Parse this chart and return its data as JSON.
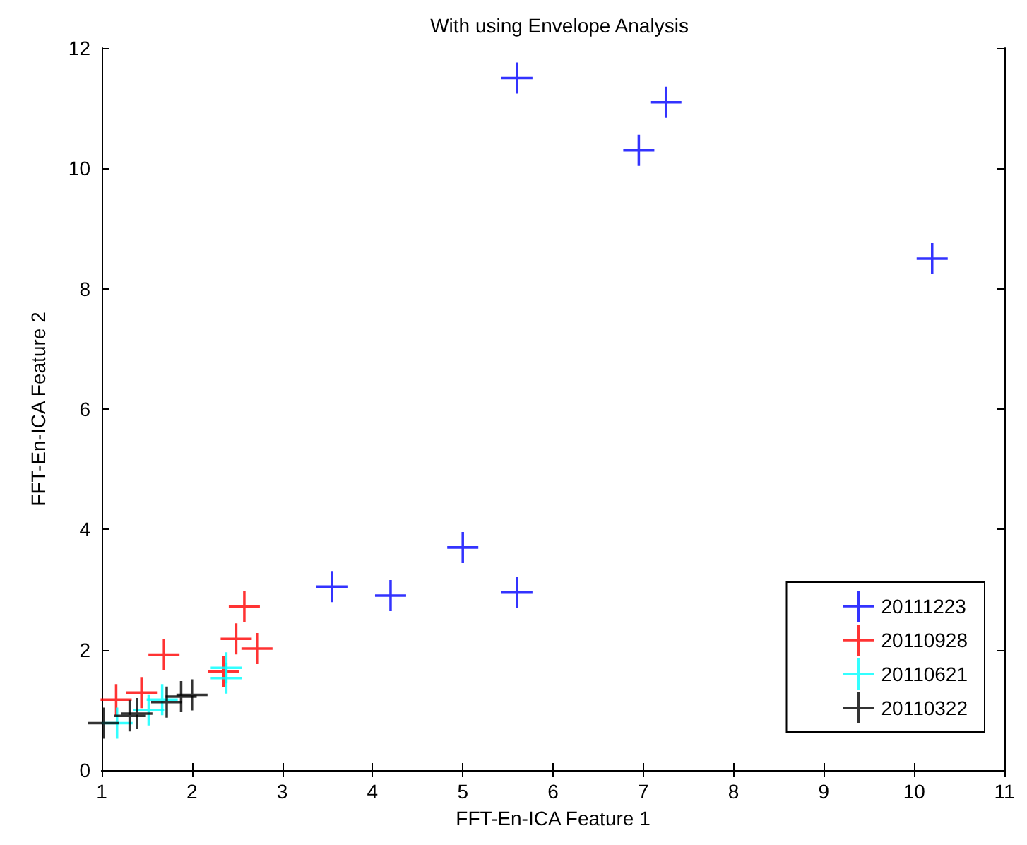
{
  "chart_data": {
    "type": "scatter",
    "title": "With using Envelope Analysis",
    "xlabel": "FFT-En-ICA Feature 1",
    "ylabel": "FFT-En-ICA Feature 2",
    "xlim": [
      1,
      11
    ],
    "xticks": [
      1,
      2,
      3,
      4,
      5,
      6,
      7,
      8,
      9,
      10,
      11
    ],
    "ylim": [
      0,
      12
    ],
    "yticks": [
      0,
      2,
      4,
      6,
      8,
      10,
      12
    ],
    "grid": false,
    "legend": "bottom right",
    "marker": "cross",
    "series": [
      {
        "name": "20111223",
        "color": "#0000ff",
        "x": [
          5.6,
          7.25,
          6.95,
          10.2,
          3.55,
          4.2,
          5.0,
          5.6
        ],
        "values": [
          11.5,
          11.1,
          10.3,
          8.5,
          3.05,
          2.9,
          3.7,
          2.95
        ]
      },
      {
        "name": "20110928",
        "color": "#ff0000",
        "x": [
          2.58,
          2.49,
          2.72,
          1.69,
          2.35,
          1.16,
          1.44
        ],
        "values": [
          2.72,
          2.18,
          2.02,
          1.92,
          1.64,
          1.17,
          1.29
        ]
      },
      {
        "name": "20110621",
        "color": "#00ffff",
        "x": [
          2.38,
          2.38,
          1.17,
          1.52,
          1.67
        ],
        "values": [
          1.7,
          1.53,
          0.78,
          1.0,
          1.17
        ]
      },
      {
        "name": "20110322",
        "color": "#000000",
        "x": [
          1.02,
          1.31,
          1.39,
          1.72,
          1.88,
          2.0
        ],
        "values": [
          0.78,
          0.9,
          0.94,
          1.13,
          1.22,
          1.25
        ]
      }
    ]
  }
}
